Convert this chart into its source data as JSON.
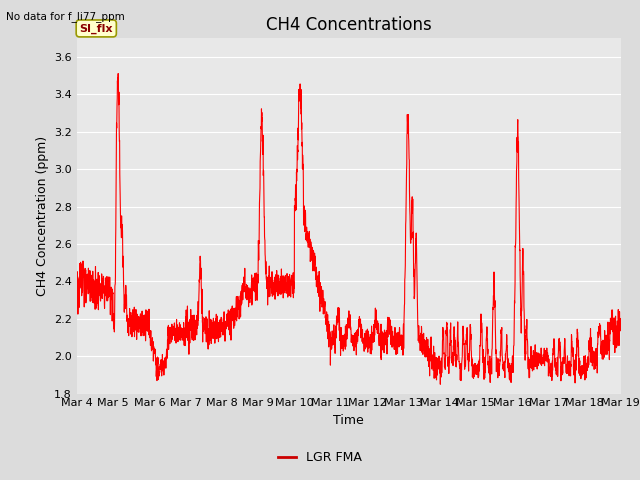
{
  "title": "CH4 Concentrations",
  "xlabel": "Time",
  "ylabel": "CH4 Concentration (ppm)",
  "ylim": [
    1.8,
    3.7
  ],
  "yticks": [
    1.8,
    2.0,
    2.2,
    2.4,
    2.6,
    2.8,
    3.0,
    3.2,
    3.4,
    3.6
  ],
  "line_color": "#FF0000",
  "line_width": 0.8,
  "background_color": "#DCDCDC",
  "axes_bg_color": "#DCDCDC",
  "plot_bg_color": "#E8E8E8",
  "no_data_text": "No data for f_li77_ppm",
  "legend_label": "LGR FMA",
  "legend_line_color": "#CC0000",
  "annotation_text": "SI_flx",
  "annotation_box_facecolor": "#FFFFCC",
  "annotation_box_edgecolor": "#999900",
  "x_dates": [
    "Mar 4",
    "Mar 5",
    "Mar 6",
    "Mar 7",
    "Mar 8",
    "Mar 9",
    "Mar 10",
    "Mar 11",
    "Mar 12",
    "Mar 13",
    "Mar 14",
    "Mar 15",
    "Mar 16",
    "Mar 17",
    "Mar 18",
    "Mar 19"
  ],
  "grid_color": "#FFFFFF",
  "title_fontsize": 12,
  "axis_fontsize": 9,
  "tick_fontsize": 8
}
